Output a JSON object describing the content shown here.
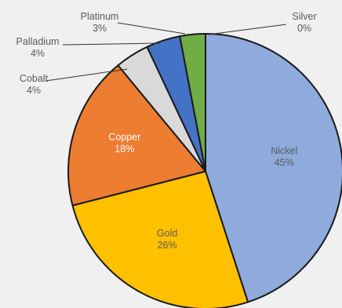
{
  "chart_data": {
    "type": "pie",
    "title": "",
    "legend": "none",
    "slices": [
      {
        "label": "Nickel",
        "value": 45,
        "value_label": "45%",
        "color": "#8faadc",
        "label_color": "#5a5a5a"
      },
      {
        "label": "Gold",
        "value": 26,
        "value_label": "26%",
        "color": "#ffc000",
        "label_color": "#5a5a5a"
      },
      {
        "label": "Copper",
        "value": 18,
        "value_label": "18%",
        "color": "#ed7d31",
        "label_color": "#ffffff"
      },
      {
        "label": "Cobalt",
        "value": 4,
        "value_label": "4%",
        "color": "#d9d9d9",
        "label_color": "#5a5a5a"
      },
      {
        "label": "Palladium",
        "value": 4,
        "value_label": "4%",
        "color": "#4472c4",
        "label_color": "#5a5a5a"
      },
      {
        "label": "Platinum",
        "value": 3,
        "value_label": "3%",
        "color": "#70ad47",
        "label_color": "#5a5a5a"
      },
      {
        "label": "Silver",
        "value": 0,
        "value_label": "0%",
        "color": "#a5a5a5",
        "label_color": "#5a5a5a"
      }
    ]
  }
}
